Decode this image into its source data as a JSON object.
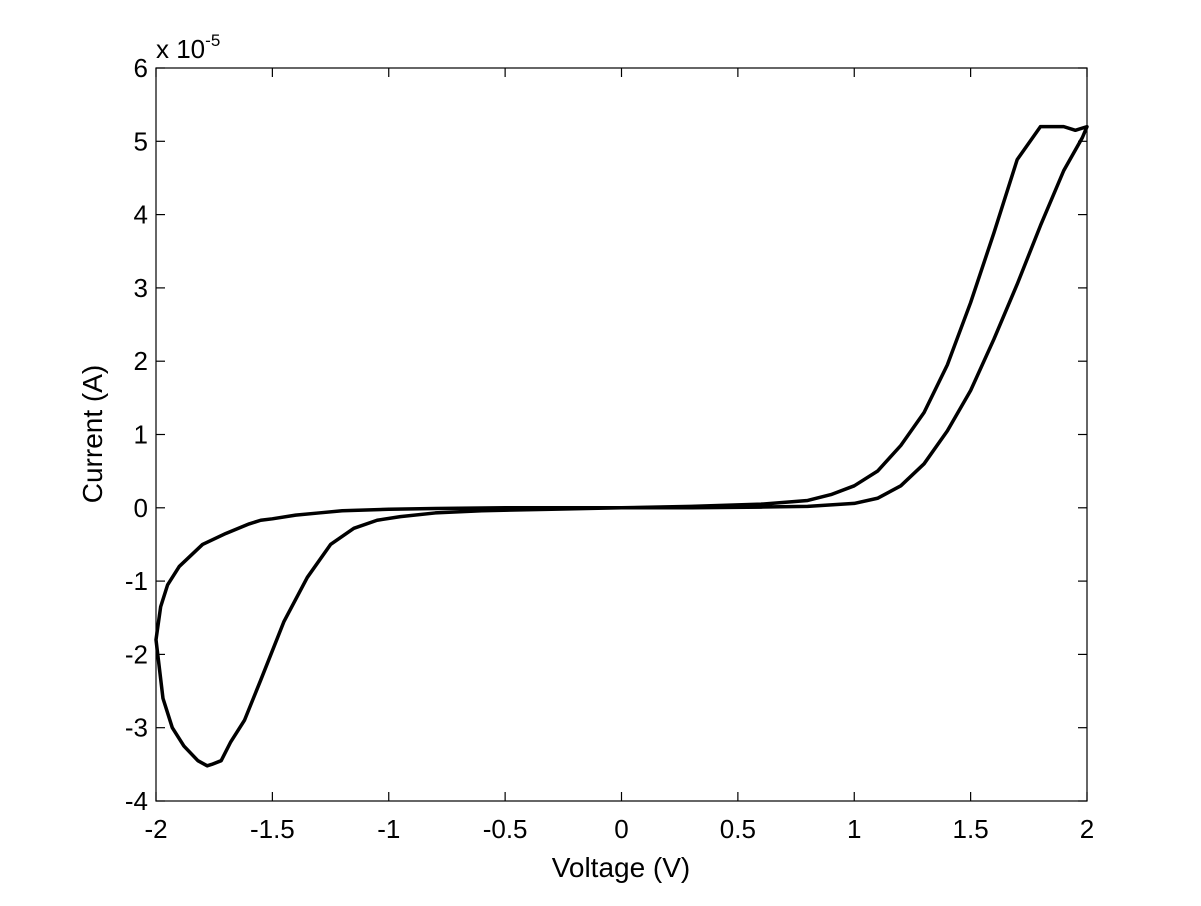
{
  "chart_data": {
    "type": "line",
    "title": "",
    "xlabel": "Voltage (V)",
    "ylabel": "Current (A)",
    "xlim": [
      -2,
      2
    ],
    "ylim": [
      -4,
      6
    ],
    "y_scale_factor": "x 10",
    "y_scale_exponent": "-5",
    "y_units_multiplier": 1e-05,
    "grid": false,
    "legend": "none",
    "line_color": "#000000",
    "x_ticks": [
      "-2",
      "-1.5",
      "-1",
      "-0.5",
      "0",
      "0.5",
      "1",
      "1.5",
      "2"
    ],
    "y_ticks": [
      "-4",
      "-3",
      "-2",
      "-1",
      "0",
      "1",
      "2",
      "3",
      "4",
      "5",
      "6"
    ],
    "x_tick_values": [
      -2,
      -1.5,
      -1,
      -0.5,
      0,
      0.5,
      1,
      1.5,
      2
    ],
    "y_tick_values": [
      -4,
      -3,
      -2,
      -1,
      0,
      1,
      2,
      3,
      4,
      5,
      6
    ],
    "series": [
      {
        "values_note": "Current values shown in units of 1e-5 A",
        "x": [
          0,
          0.3,
          0.6,
          0.8,
          0.9,
          1.0,
          1.1,
          1.2,
          1.3,
          1.4,
          1.5,
          1.6,
          1.7,
          1.8,
          1.9,
          1.95,
          2.0,
          1.98,
          1.9,
          1.8,
          1.7,
          1.6,
          1.5,
          1.4,
          1.3,
          1.2,
          1.1,
          1.0,
          0.9,
          0.8,
          0.6,
          0.3,
          0,
          -0.3,
          -0.6,
          -0.8,
          -0.95,
          -1.05,
          -1.15,
          -1.25,
          -1.35,
          -1.45,
          -1.55,
          -1.62,
          -1.68,
          -1.72,
          -1.76,
          -1.78,
          -1.82,
          -1.88,
          -1.93,
          -1.97,
          -2.0,
          -1.98,
          -1.95,
          -1.9,
          -1.8,
          -1.7,
          -1.6,
          -1.55,
          -1.5,
          -1.4,
          -1.3,
          -1.2,
          -1.0,
          -0.8,
          -0.5,
          -0.2,
          0
        ],
        "y": [
          0,
          0.02,
          0.05,
          0.1,
          0.18,
          0.3,
          0.5,
          0.85,
          1.3,
          1.95,
          2.8,
          3.75,
          4.75,
          5.2,
          5.2,
          5.15,
          5.2,
          5.05,
          4.6,
          3.85,
          3.05,
          2.3,
          1.6,
          1.05,
          0.6,
          0.3,
          0.13,
          0.06,
          0.04,
          0.02,
          0.01,
          0.0,
          0,
          -0.02,
          -0.04,
          -0.07,
          -0.12,
          -0.17,
          -0.28,
          -0.5,
          -0.95,
          -1.55,
          -2.35,
          -2.9,
          -3.2,
          -3.45,
          -3.5,
          -3.52,
          -3.45,
          -3.25,
          -3.0,
          -2.6,
          -1.8,
          -1.35,
          -1.05,
          -0.8,
          -0.5,
          -0.35,
          -0.22,
          -0.17,
          -0.15,
          -0.1,
          -0.07,
          -0.04,
          -0.02,
          -0.01,
          -0.0,
          0.0,
          0
        ]
      }
    ]
  }
}
